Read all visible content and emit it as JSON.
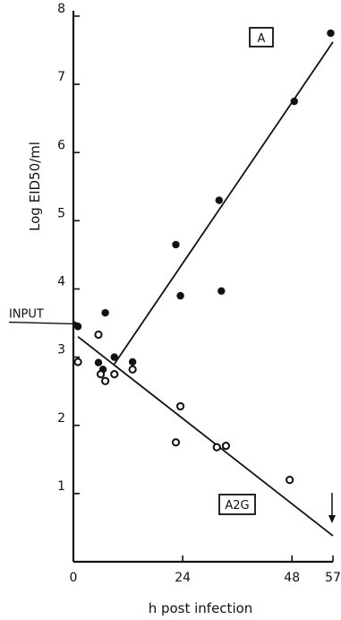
{
  "chart_data": {
    "type": "scatter",
    "xlabel": "h post infection",
    "ylabel": "Log EID50/ml",
    "xlim": [
      0,
      57
    ],
    "ylim": [
      0,
      8
    ],
    "xticks": [
      0,
      24,
      48,
      57
    ],
    "yticks": [
      1,
      2,
      3,
      4,
      5,
      6,
      7,
      8
    ],
    "grid": false,
    "series": [
      {
        "name": "A",
        "marker": "filled-circle",
        "points": [
          {
            "x": 1,
            "y": 3.45
          },
          {
            "x": 5.5,
            "y": 2.92
          },
          {
            "x": 6.5,
            "y": 2.82
          },
          {
            "x": 7,
            "y": 3.65
          },
          {
            "x": 9,
            "y": 3.0
          },
          {
            "x": 13,
            "y": 2.93
          },
          {
            "x": 22.5,
            "y": 4.65
          },
          {
            "x": 23.5,
            "y": 3.9
          },
          {
            "x": 32,
            "y": 5.3
          },
          {
            "x": 32.5,
            "y": 3.97
          },
          {
            "x": 48.5,
            "y": 6.75
          },
          {
            "x": 56.5,
            "y": 7.75
          }
        ],
        "fit_line": {
          "from": [
            9,
            2.9
          ],
          "to": [
            57,
            7.62
          ]
        }
      },
      {
        "name": "A2G",
        "marker": "open-circle",
        "points": [
          {
            "x": 1,
            "y": 2.93
          },
          {
            "x": 5.5,
            "y": 3.33
          },
          {
            "x": 6,
            "y": 2.75
          },
          {
            "x": 7,
            "y": 2.65
          },
          {
            "x": 9,
            "y": 2.75
          },
          {
            "x": 13,
            "y": 2.82
          },
          {
            "x": 22.5,
            "y": 1.75
          },
          {
            "x": 23.5,
            "y": 2.28
          },
          {
            "x": 31.5,
            "y": 1.68
          },
          {
            "x": 33.5,
            "y": 1.7
          },
          {
            "x": 47.5,
            "y": 1.2
          }
        ],
        "fit_line": {
          "from": [
            1,
            3.3
          ],
          "to": [
            57,
            0.38
          ]
        }
      }
    ],
    "annotations": {
      "series_a_label": "A",
      "series_a2g_label": "A2G",
      "input_label": "INPUT",
      "input_value": 3.5,
      "end_arrow_x": 57
    }
  }
}
